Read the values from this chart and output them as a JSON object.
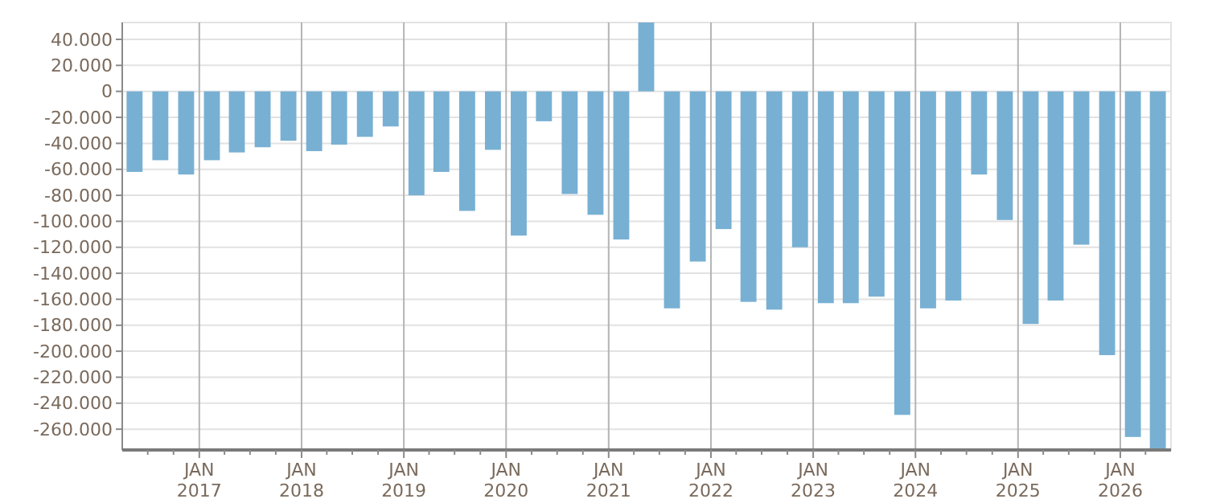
{
  "chart_data": {
    "type": "bar",
    "x": [
      "2016-05-15",
      "2016-08-15",
      "2016-11-15",
      "2017-02-15",
      "2017-05-15",
      "2017-08-15",
      "2017-11-15",
      "2018-02-15",
      "2018-05-15",
      "2018-08-15",
      "2018-11-15",
      "2019-02-15",
      "2019-05-15",
      "2019-08-15",
      "2019-11-15",
      "2020-02-15",
      "2020-05-15",
      "2020-08-15",
      "2020-11-15",
      "2021-02-15",
      "2021-05-15",
      "2021-08-15",
      "2021-11-15",
      "2022-02-15",
      "2022-05-15",
      "2022-08-15",
      "2022-11-15",
      "2023-02-15",
      "2023-05-15",
      "2023-08-15",
      "2023-11-15",
      "2024-02-15",
      "2024-05-15",
      "2024-08-15",
      "2024-11-15",
      "2025-02-15",
      "2025-05-15",
      "2025-08-15",
      "2025-11-15",
      "2026-02-15",
      "2026-05-15"
    ],
    "values": [
      -62000,
      -53000,
      -64000,
      -53000,
      -47000,
      -43000,
      -38000,
      -46000,
      -41000,
      -35000,
      -27000,
      -80000,
      -62000,
      -92000,
      -45000,
      -111000,
      -23000,
      -79000,
      -95000,
      -114000,
      53000,
      -167000,
      -131000,
      -106000,
      -162000,
      -168000,
      -120000,
      -163000,
      -163000,
      -158000,
      -249000,
      -167000,
      -161000,
      -64000,
      -99000,
      -179000,
      -161000,
      -118000,
      -203000,
      -266000,
      -276000
    ],
    "color": "#78b0d3",
    "xlim": [
      "2016-04-01",
      "2026-07-01"
    ],
    "xticks": [
      {
        "value": "2016-07-01",
        "label": null
      },
      {
        "value": "2016-10-01",
        "label": null
      },
      {
        "value": "2017-01-01",
        "label": "JAN 2017"
      },
      {
        "value": "2017-04-01",
        "label": null
      },
      {
        "value": "2017-07-01",
        "label": null
      },
      {
        "value": "2017-10-01",
        "label": null
      },
      {
        "value": "2018-01-01",
        "label": "JAN 2018"
      },
      {
        "value": "2018-04-01",
        "label": null
      },
      {
        "value": "2018-07-01",
        "label": null
      },
      {
        "value": "2018-10-01",
        "label": null
      },
      {
        "value": "2019-01-01",
        "label": "JAN 2019"
      },
      {
        "value": "2019-04-01",
        "label": null
      },
      {
        "value": "2019-07-01",
        "label": null
      },
      {
        "value": "2019-10-01",
        "label": null
      },
      {
        "value": "2020-01-01",
        "label": "JAN 2020"
      },
      {
        "value": "2020-04-01",
        "label": null
      },
      {
        "value": "2020-07-01",
        "label": null
      },
      {
        "value": "2020-10-01",
        "label": null
      },
      {
        "value": "2021-01-01",
        "label": "JAN 2021"
      },
      {
        "value": "2021-04-01",
        "label": null
      },
      {
        "value": "2021-07-01",
        "label": null
      },
      {
        "value": "2021-10-01",
        "label": null
      },
      {
        "value": "2022-01-01",
        "label": "JAN 2022"
      },
      {
        "value": "2022-04-01",
        "label": null
      },
      {
        "value": "2022-07-01",
        "label": null
      },
      {
        "value": "2022-10-01",
        "label": null
      },
      {
        "value": "2023-01-01",
        "label": "JAN 2023"
      },
      {
        "value": "2023-04-01",
        "label": null
      },
      {
        "value": "2023-07-01",
        "label": null
      },
      {
        "value": "2023-10-01",
        "label": null
      },
      {
        "value": "2024-01-01",
        "label": "JAN 2024"
      },
      {
        "value": "2024-04-01",
        "label": null
      },
      {
        "value": "2024-07-01",
        "label": null
      },
      {
        "value": "2024-10-01",
        "label": null
      },
      {
        "value": "2025-01-01",
        "label": "JAN 2025"
      },
      {
        "value": "2025-04-01",
        "label": null
      },
      {
        "value": "2025-07-01",
        "label": null
      },
      {
        "value": "2025-10-01",
        "label": null
      },
      {
        "value": "2026-01-01",
        "label": "JAN 2026"
      },
      {
        "value": "2026-04-01",
        "label": null
      }
    ],
    "ylim": [
      -276000,
      53000
    ],
    "yticks": [
      {
        "value": 40000,
        "label": "40.000"
      },
      {
        "value": 20000,
        "label": "20.000"
      },
      0,
      {
        "value": -20000,
        "label": "-20.000"
      },
      {
        "value": -40000,
        "label": "-40.000"
      },
      {
        "value": -60000,
        "label": "-60.000"
      },
      {
        "value": -80000,
        "label": "-80.000"
      },
      {
        "value": -100000,
        "label": "-100.000"
      },
      {
        "value": -120000,
        "label": "-120.000"
      },
      {
        "value": -140000,
        "label": "-140.000"
      },
      {
        "value": -160000,
        "label": "-160.000"
      },
      {
        "value": -180000,
        "label": "-180.000"
      },
      {
        "value": -200000,
        "label": "-200.000"
      },
      {
        "value": -220000,
        "label": "-220.000"
      },
      {
        "value": -240000,
        "label": "-240.000"
      },
      {
        "value": -260000,
        "label": "-260.000"
      }
    ],
    "grid": true
  }
}
